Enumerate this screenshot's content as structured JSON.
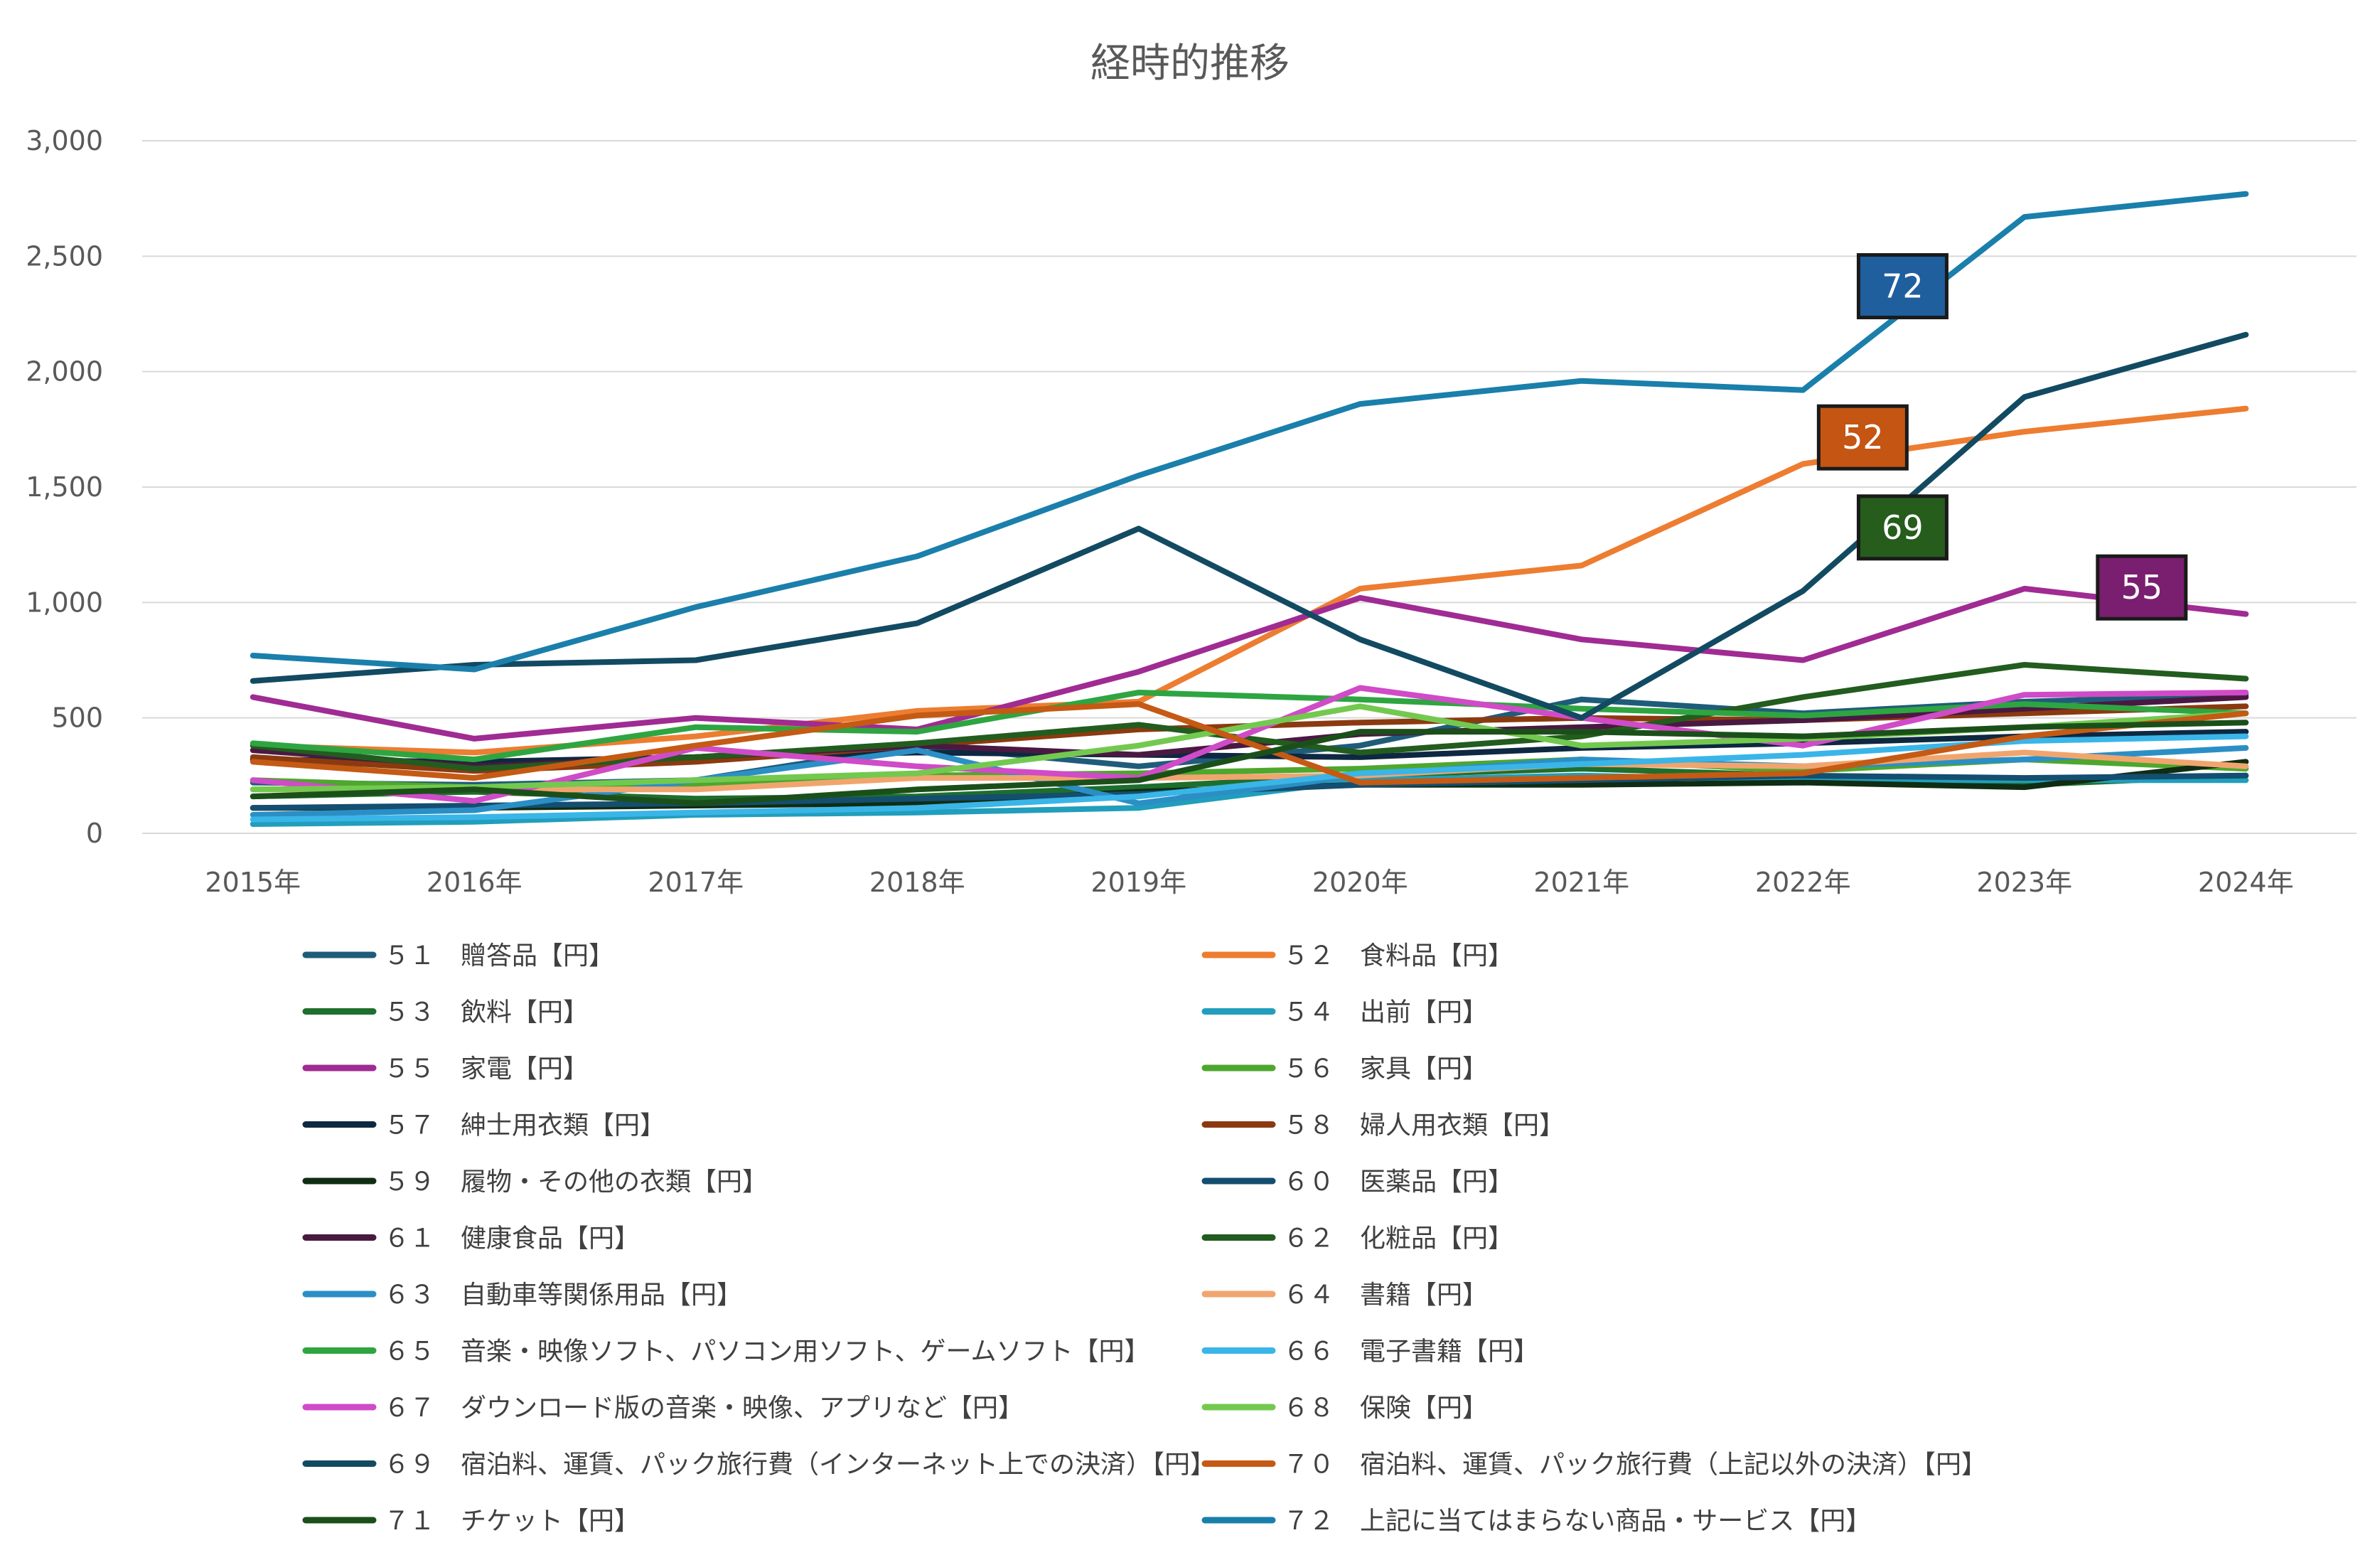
{
  "chart_data": {
    "type": "line",
    "title": "経時的推移",
    "xlabel": "",
    "ylabel": "",
    "ylim": [
      0,
      3000
    ],
    "yticks": [
      0,
      500,
      1000,
      1500,
      2000,
      2500,
      3000
    ],
    "ytick_labels": [
      "0",
      "500",
      "1,000",
      "1,500",
      "2,000",
      "2,500",
      "3,000"
    ],
    "categories": [
      "2015年",
      "2016年",
      "2017年",
      "2018年",
      "2019年",
      "2020年",
      "2021年",
      "2022年",
      "2023年",
      "2024年"
    ],
    "grid": true,
    "legend_position": "bottom",
    "series": [
      {
        "id": "51",
        "name": "５１　贈答品【円】",
        "color": "#1f5c7a",
        "values": [
          220,
          210,
          230,
          380,
          290,
          380,
          580,
          520,
          570,
          600
        ]
      },
      {
        "id": "52",
        "name": "５２　食料品【円】",
        "color": "#ed7d31",
        "values": [
          380,
          350,
          420,
          530,
          570,
          1060,
          1160,
          1600,
          1740,
          1840
        ]
      },
      {
        "id": "53",
        "name": "５３　飲料【円】",
        "color": "#1e6e2e",
        "values": [
          160,
          180,
          150,
          160,
          200,
          250,
          280,
          250,
          210,
          250
        ]
      },
      {
        "id": "54",
        "name": "５４　出前【円】",
        "color": "#219ebc",
        "values": [
          40,
          50,
          80,
          90,
          110,
          230,
          250,
          230,
          230,
          230
        ]
      },
      {
        "id": "55",
        "name": "５５　家電【円】",
        "color": "#a02b93",
        "values": [
          590,
          410,
          500,
          450,
          700,
          1020,
          840,
          750,
          1060,
          950
        ]
      },
      {
        "id": "56",
        "name": "５６　家具【円】",
        "color": "#4ea72e",
        "values": [
          230,
          200,
          210,
          250,
          260,
          280,
          320,
          270,
          320,
          280
        ]
      },
      {
        "id": "57",
        "name": "５７　紳士用衣類【円】",
        "color": "#0e2841",
        "values": [
          320,
          310,
          330,
          350,
          340,
          330,
          370,
          390,
          420,
          440
        ]
      },
      {
        "id": "58",
        "name": "５８　婦人用衣類【円】",
        "color": "#8b3a10",
        "values": [
          330,
          270,
          310,
          380,
          450,
          480,
          500,
          490,
          520,
          550
        ]
      },
      {
        "id": "59",
        "name": "５９　履物・その他の衣類【円】",
        "color": "#0f2d12",
        "values": [
          110,
          110,
          120,
          130,
          180,
          210,
          210,
          220,
          200,
          310
        ]
      },
      {
        "id": "60",
        "name": "６０　医薬品【円】",
        "color": "#144e70",
        "values": [
          110,
          120,
          130,
          150,
          170,
          210,
          230,
          250,
          240,
          250
        ]
      },
      {
        "id": "61",
        "name": "６１　健康食品【円】",
        "color": "#4a1942",
        "values": [
          360,
          290,
          330,
          380,
          340,
          430,
          460,
          490,
          540,
          590
        ]
      },
      {
        "id": "62",
        "name": "６２　化粧品【円】",
        "color": "#225c1e",
        "values": [
          380,
          280,
          330,
          390,
          470,
          350,
          420,
          590,
          730,
          670
        ]
      },
      {
        "id": "63",
        "name": "６３　自動車等関係用品【円】",
        "color": "#2b8fc6",
        "values": [
          80,
          100,
          230,
          360,
          130,
          250,
          320,
          290,
          320,
          370
        ]
      },
      {
        "id": "64",
        "name": "６４　書籍【円】",
        "color": "#f1a56e",
        "values": [
          190,
          190,
          190,
          240,
          240,
          250,
          300,
          290,
          350,
          290
        ]
      },
      {
        "id": "65",
        "name": "６５　音楽・映像ソフト、パソコン用ソフト、ゲームソフト【円】",
        "color": "#2ea541",
        "values": [
          390,
          320,
          460,
          440,
          610,
          580,
          540,
          510,
          560,
          520
        ]
      },
      {
        "id": "66",
        "name": "６６　電子書籍【円】",
        "color": "#3ab5e8",
        "values": [
          60,
          70,
          90,
          110,
          160,
          260,
          300,
          340,
          400,
          420
        ]
      },
      {
        "id": "67",
        "name": "６７　ダウンロード版の音楽・映像、アプリなど【円】",
        "color": "#d04bc7",
        "values": [
          230,
          140,
          370,
          290,
          240,
          630,
          500,
          380,
          600,
          610
        ]
      },
      {
        "id": "68",
        "name": "６８　保険【円】",
        "color": "#73c94f",
        "values": [
          190,
          200,
          230,
          260,
          380,
          550,
          380,
          410,
          460,
          520
        ]
      },
      {
        "id": "69",
        "name": "６９　宿泊料、運賃、パック旅行費（インターネット上での決済）【円】",
        "color": "#124a62",
        "values": [
          660,
          730,
          750,
          910,
          1320,
          840,
          500,
          1050,
          1890,
          2160
        ]
      },
      {
        "id": "70",
        "name": "７０　宿泊料、運賃、パック旅行費（上記以外の決済）【円】",
        "color": "#c45a14",
        "values": [
          310,
          240,
          380,
          510,
          560,
          220,
          240,
          260,
          420,
          520
        ]
      },
      {
        "id": "71",
        "name": "７１　チケット【円】",
        "color": "#1b4f1a",
        "values": [
          160,
          190,
          130,
          190,
          230,
          440,
          440,
          420,
          460,
          480
        ]
      },
      {
        "id": "72",
        "name": "７２　上記に当てはまらない商品・サービス【円】",
        "color": "#1a7fab",
        "values": [
          770,
          710,
          980,
          1200,
          1550,
          1860,
          1960,
          1920,
          2670,
          2770
        ]
      }
    ],
    "annotations": [
      {
        "text": "72",
        "series": "72",
        "fill": "#1f5f9e",
        "x": 2022.45,
        "y": 2370
      },
      {
        "text": "52",
        "series": "52",
        "fill": "#c45512",
        "x": 2022.27,
        "y": 1715
      },
      {
        "text": "69",
        "series": "69",
        "fill": "#265c1c",
        "x": 2022.45,
        "y": 1325
      },
      {
        "text": "55",
        "series": "55",
        "fill": "#7a1f70",
        "x": 2023.53,
        "y": 1065
      }
    ]
  }
}
